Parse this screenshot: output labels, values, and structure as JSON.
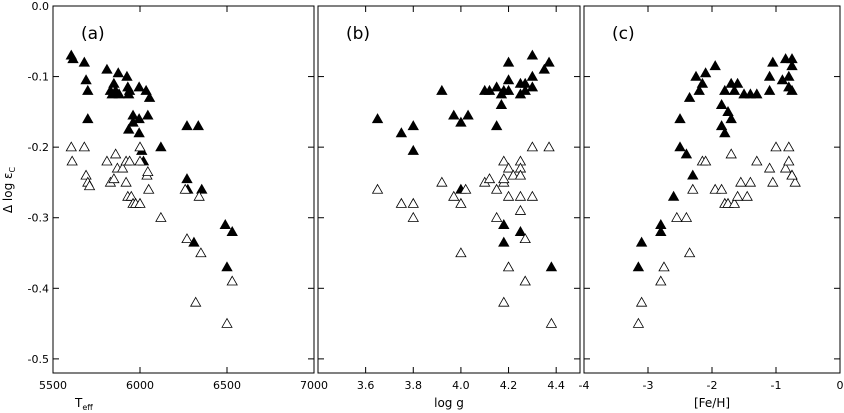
{
  "chart_data": [
    {
      "type": "scatter",
      "panel_label": "(a)",
      "xlabel": "T",
      "xlabel_sub": "eff",
      "ylabel": "Δ log ε",
      "ylabel_sub": "C",
      "xlim": [
        5500,
        7000
      ],
      "ylim": [
        -0.52,
        0.0
      ],
      "xticks": [
        5500,
        6000,
        6500,
        7000
      ],
      "xtick_labels": [
        "5500",
        "6000",
        "6500",
        "7000"
      ],
      "yticks": [
        -0.5,
        -0.4,
        -0.3,
        -0.2,
        -0.1,
        0.0
      ],
      "ytick_labels": [
        "-0.5",
        "-0.4",
        "-0.3",
        "-0.2",
        "-0.1",
        "0.0"
      ],
      "grid": false,
      "series": [
        {
          "marker": "filled-triangle",
          "points": [
            [
              5605,
              -0.07
            ],
            [
              5615,
              -0.075
            ],
            [
              5680,
              -0.08
            ],
            [
              5690,
              -0.105
            ],
            [
              5700,
              -0.12
            ],
            [
              5700,
              -0.16
            ],
            [
              5810,
              -0.09
            ],
            [
              5830,
              -0.12
            ],
            [
              5840,
              -0.125
            ],
            [
              5850,
              -0.11
            ],
            [
              5860,
              -0.12
            ],
            [
              5875,
              -0.095
            ],
            [
              5880,
              -0.125
            ],
            [
              5925,
              -0.1
            ],
            [
              5930,
              -0.115
            ],
            [
              5935,
              -0.125
            ],
            [
              5940,
              -0.12
            ],
            [
              5935,
              -0.175
            ],
            [
              5960,
              -0.155
            ],
            [
              5960,
              -0.165
            ],
            [
              5995,
              -0.115
            ],
            [
              5995,
              -0.18
            ],
            [
              5995,
              -0.16
            ],
            [
              6010,
              -0.205
            ],
            [
              6020,
              -0.22
            ],
            [
              6035,
              -0.12
            ],
            [
              6045,
              -0.155
            ],
            [
              6055,
              -0.13
            ],
            [
              6120,
              -0.2
            ],
            [
              6270,
              -0.17
            ],
            [
              6335,
              -0.17
            ],
            [
              6270,
              -0.245
            ],
            [
              6275,
              -0.26
            ],
            [
              6310,
              -0.335
            ],
            [
              6355,
              -0.26
            ],
            [
              6490,
              -0.31
            ],
            [
              6500,
              -0.37
            ],
            [
              6530,
              -0.32
            ]
          ]
        },
        {
          "marker": "open-triangle",
          "points": [
            [
              5605,
              -0.2
            ],
            [
              5610,
              -0.22
            ],
            [
              5680,
              -0.2
            ],
            [
              5690,
              -0.24
            ],
            [
              5700,
              -0.25
            ],
            [
              5710,
              -0.255
            ],
            [
              5810,
              -0.22
            ],
            [
              5830,
              -0.25
            ],
            [
              5850,
              -0.245
            ],
            [
              5860,
              -0.21
            ],
            [
              5870,
              -0.23
            ],
            [
              5900,
              -0.23
            ],
            [
              5920,
              -0.22
            ],
            [
              5920,
              -0.25
            ],
            [
              5930,
              -0.27
            ],
            [
              5940,
              -0.22
            ],
            [
              5950,
              -0.27
            ],
            [
              5960,
              -0.28
            ],
            [
              5975,
              -0.28
            ],
            [
              6000,
              -0.2
            ],
            [
              6000,
              -0.22
            ],
            [
              6000,
              -0.28
            ],
            [
              6040,
              -0.24
            ],
            [
              6045,
              -0.235
            ],
            [
              6050,
              -0.26
            ],
            [
              6120,
              -0.3
            ],
            [
              6260,
              -0.26
            ],
            [
              6270,
              -0.33
            ],
            [
              6320,
              -0.42
            ],
            [
              6340,
              -0.27
            ],
            [
              6350,
              -0.35
            ],
            [
              6500,
              -0.45
            ],
            [
              6530,
              -0.39
            ]
          ]
        }
      ]
    },
    {
      "type": "scatter",
      "panel_label": "(b)",
      "xlabel": "log g",
      "xlim": [
        3.4,
        4.5
      ],
      "ylim": [
        -0.52,
        0.0
      ],
      "xticks": [
        3.6,
        3.8,
        4.0,
        4.2,
        4.4
      ],
      "xtick_labels": [
        "3.6",
        "3.8",
        "4.0",
        "4.2",
        "4.4"
      ],
      "grid": false,
      "series": [
        {
          "marker": "filled-triangle",
          "points": [
            [
              3.65,
              -0.16
            ],
            [
              3.75,
              -0.18
            ],
            [
              3.8,
              -0.17
            ],
            [
              3.8,
              -0.205
            ],
            [
              3.92,
              -0.12
            ],
            [
              3.97,
              -0.155
            ],
            [
              4.0,
              -0.165
            ],
            [
              4.0,
              -0.26
            ],
            [
              4.03,
              -0.155
            ],
            [
              4.1,
              -0.12
            ],
            [
              4.12,
              -0.12
            ],
            [
              4.15,
              -0.115
            ],
            [
              4.15,
              -0.17
            ],
            [
              4.17,
              -0.125
            ],
            [
              4.17,
              -0.14
            ],
            [
              4.18,
              -0.12
            ],
            [
              4.18,
              -0.31
            ],
            [
              4.18,
              -0.335
            ],
            [
              4.2,
              -0.08
            ],
            [
              4.2,
              -0.105
            ],
            [
              4.2,
              -0.12
            ],
            [
              4.25,
              -0.11
            ],
            [
              4.25,
              -0.125
            ],
            [
              4.25,
              -0.32
            ],
            [
              4.27,
              -0.12
            ],
            [
              4.27,
              -0.11
            ],
            [
              4.3,
              -0.1
            ],
            [
              4.3,
              -0.115
            ],
            [
              4.3,
              -0.07
            ],
            [
              4.35,
              -0.09
            ],
            [
              4.37,
              -0.08
            ],
            [
              4.38,
              -0.37
            ]
          ]
        },
        {
          "marker": "open-triangle",
          "points": [
            [
              3.65,
              -0.26
            ],
            [
              3.75,
              -0.28
            ],
            [
              3.8,
              -0.28
            ],
            [
              3.8,
              -0.3
            ],
            [
              3.92,
              -0.25
            ],
            [
              3.97,
              -0.27
            ],
            [
              4.0,
              -0.28
            ],
            [
              4.02,
              -0.26
            ],
            [
              4.1,
              -0.25
            ],
            [
              4.12,
              -0.245
            ],
            [
              4.15,
              -0.26
            ],
            [
              4.15,
              -0.3
            ],
            [
              4.18,
              -0.25
            ],
            [
              4.18,
              -0.22
            ],
            [
              4.18,
              -0.245
            ],
            [
              4.2,
              -0.23
            ],
            [
              4.2,
              -0.27
            ],
            [
              4.2,
              -0.37
            ],
            [
              4.22,
              -0.24
            ],
            [
              4.25,
              -0.22
            ],
            [
              4.25,
              -0.23
            ],
            [
              4.25,
              -0.24
            ],
            [
              4.25,
              -0.27
            ],
            [
              4.25,
              -0.29
            ],
            [
              4.27,
              -0.33
            ],
            [
              4.27,
              -0.39
            ],
            [
              4.3,
              -0.2
            ],
            [
              4.3,
              -0.27
            ],
            [
              4.37,
              -0.2
            ],
            [
              4.38,
              -0.45
            ],
            [
              4.18,
              -0.42
            ],
            [
              4.0,
              -0.35
            ]
          ]
        }
      ]
    },
    {
      "type": "scatter",
      "panel_label": "(c)",
      "xlabel": "[Fe/H]",
      "xlim": [
        -4,
        0
      ],
      "ylim": [
        -0.52,
        0.0
      ],
      "xticks": [
        -4,
        -3,
        -2,
        -1,
        0
      ],
      "xtick_labels": [
        "-4",
        "-3",
        "-2",
        "-1",
        "0"
      ],
      "grid": false,
      "series": [
        {
          "marker": "filled-triangle",
          "points": [
            [
              -3.15,
              -0.37
            ],
            [
              -3.1,
              -0.335
            ],
            [
              -2.8,
              -0.31
            ],
            [
              -2.8,
              -0.32
            ],
            [
              -2.6,
              -0.27
            ],
            [
              -2.5,
              -0.16
            ],
            [
              -2.5,
              -0.2
            ],
            [
              -2.4,
              -0.21
            ],
            [
              -2.35,
              -0.13
            ],
            [
              -2.3,
              -0.24
            ],
            [
              -2.25,
              -0.1
            ],
            [
              -2.2,
              -0.12
            ],
            [
              -2.15,
              -0.11
            ],
            [
              -2.1,
              -0.095
            ],
            [
              -1.95,
              -0.085
            ],
            [
              -1.85,
              -0.17
            ],
            [
              -1.85,
              -0.14
            ],
            [
              -1.8,
              -0.18
            ],
            [
              -1.8,
              -0.12
            ],
            [
              -1.75,
              -0.15
            ],
            [
              -1.7,
              -0.11
            ],
            [
              -1.7,
              -0.16
            ],
            [
              -1.65,
              -0.12
            ],
            [
              -1.6,
              -0.11
            ],
            [
              -1.5,
              -0.125
            ],
            [
              -1.4,
              -0.125
            ],
            [
              -1.3,
              -0.125
            ],
            [
              -1.1,
              -0.1
            ],
            [
              -1.1,
              -0.12
            ],
            [
              -1.05,
              -0.08
            ],
            [
              -0.9,
              -0.105
            ],
            [
              -0.85,
              -0.075
            ],
            [
              -0.8,
              -0.115
            ],
            [
              -0.75,
              -0.075
            ],
            [
              -0.75,
              -0.085
            ],
            [
              -0.75,
              -0.12
            ],
            [
              -0.8,
              -0.1
            ]
          ]
        },
        {
          "marker": "open-triangle",
          "points": [
            [
              -3.15,
              -0.45
            ],
            [
              -3.1,
              -0.42
            ],
            [
              -2.8,
              -0.39
            ],
            [
              -2.75,
              -0.37
            ],
            [
              -2.55,
              -0.3
            ],
            [
              -2.4,
              -0.3
            ],
            [
              -2.35,
              -0.35
            ],
            [
              -2.3,
              -0.26
            ],
            [
              -2.15,
              -0.22
            ],
            [
              -2.1,
              -0.22
            ],
            [
              -1.95,
              -0.26
            ],
            [
              -1.85,
              -0.26
            ],
            [
              -1.8,
              -0.28
            ],
            [
              -1.75,
              -0.28
            ],
            [
              -1.7,
              -0.21
            ],
            [
              -1.65,
              -0.28
            ],
            [
              -1.6,
              -0.27
            ],
            [
              -1.55,
              -0.25
            ],
            [
              -1.45,
              -0.27
            ],
            [
              -1.4,
              -0.25
            ],
            [
              -1.3,
              -0.22
            ],
            [
              -1.1,
              -0.23
            ],
            [
              -1.05,
              -0.25
            ],
            [
              -1.0,
              -0.2
            ],
            [
              -0.85,
              -0.23
            ],
            [
              -0.8,
              -0.2
            ],
            [
              -0.8,
              -0.22
            ],
            [
              -0.75,
              -0.24
            ],
            [
              -0.7,
              -0.25
            ],
            [
              -0.75,
              -0.24
            ]
          ]
        }
      ]
    }
  ]
}
